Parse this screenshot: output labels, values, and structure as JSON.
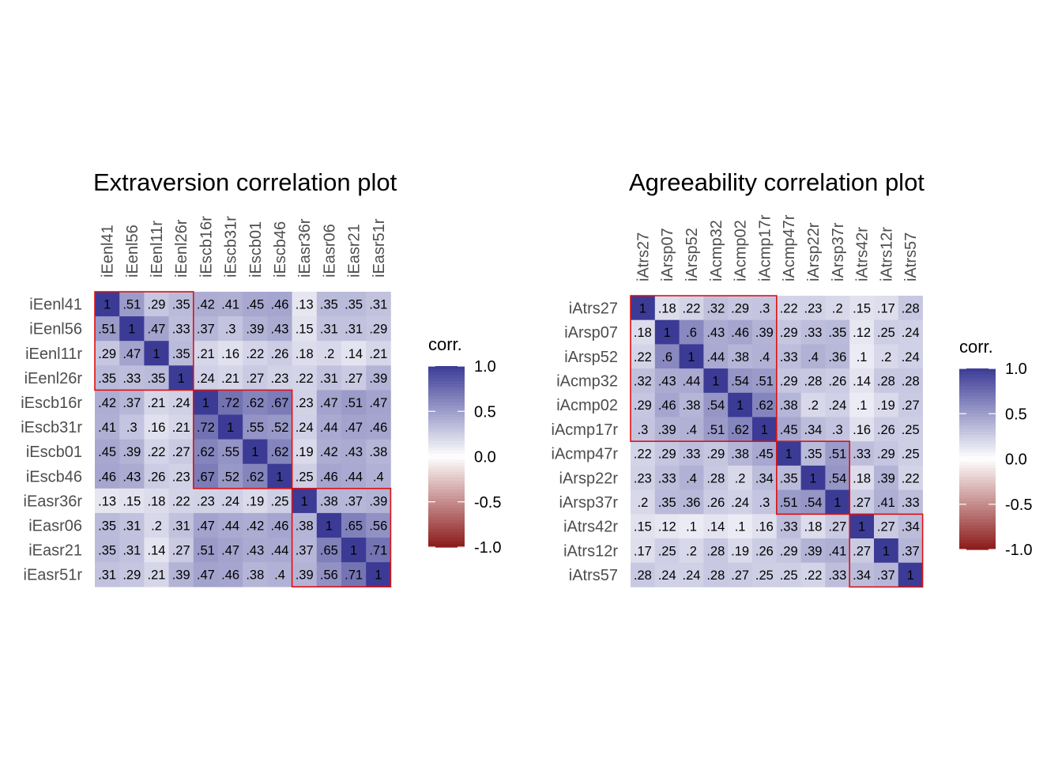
{
  "chart_data": [
    {
      "type": "heatmap",
      "title": "Extraversion correlation plot",
      "variables": [
        "iEenl41",
        "iEenl56",
        "iEenl11r",
        "iEenl26r",
        "iEscb16r",
        "iEscb31r",
        "iEscb01",
        "iEscb46",
        "iEasr36r",
        "iEasr06",
        "iEasr21",
        "iEasr51r"
      ],
      "matrix": [
        [
          1,
          0.51,
          0.29,
          0.35,
          0.42,
          0.41,
          0.45,
          0.46,
          0.13,
          0.35,
          0.35,
          0.31
        ],
        [
          0.51,
          1,
          0.47,
          0.33,
          0.37,
          0.3,
          0.39,
          0.43,
          0.15,
          0.31,
          0.31,
          0.29
        ],
        [
          0.29,
          0.47,
          1,
          0.35,
          0.21,
          0.16,
          0.22,
          0.26,
          0.18,
          0.2,
          0.14,
          0.21
        ],
        [
          0.35,
          0.33,
          0.35,
          1,
          0.24,
          0.21,
          0.27,
          0.23,
          0.22,
          0.31,
          0.27,
          0.39
        ],
        [
          0.42,
          0.37,
          0.21,
          0.24,
          1,
          0.72,
          0.62,
          0.67,
          0.23,
          0.47,
          0.51,
          0.47
        ],
        [
          0.41,
          0.3,
          0.16,
          0.21,
          0.72,
          1,
          0.55,
          0.52,
          0.24,
          0.44,
          0.47,
          0.46
        ],
        [
          0.45,
          0.39,
          0.22,
          0.27,
          0.62,
          0.55,
          1,
          0.62,
          0.19,
          0.42,
          0.43,
          0.38
        ],
        [
          0.46,
          0.43,
          0.26,
          0.23,
          0.67,
          0.52,
          0.62,
          1,
          0.25,
          0.46,
          0.44,
          0.4
        ],
        [
          0.13,
          0.15,
          0.18,
          0.22,
          0.23,
          0.24,
          0.19,
          0.25,
          1,
          0.38,
          0.37,
          0.39
        ],
        [
          0.35,
          0.31,
          0.2,
          0.31,
          0.47,
          0.44,
          0.42,
          0.46,
          0.38,
          1,
          0.65,
          0.56
        ],
        [
          0.35,
          0.31,
          0.14,
          0.27,
          0.51,
          0.47,
          0.43,
          0.44,
          0.37,
          0.65,
          1,
          0.71
        ],
        [
          0.31,
          0.29,
          0.21,
          0.39,
          0.47,
          0.46,
          0.38,
          0.4,
          0.39,
          0.56,
          0.71,
          1
        ]
      ],
      "labels": [
        [
          "1",
          ".51",
          ".29",
          ".35",
          ".42",
          ".41",
          ".45",
          ".46",
          ".13",
          ".35",
          ".35",
          ".31"
        ],
        [
          ".51",
          "1",
          ".47",
          ".33",
          ".37",
          ".3",
          ".39",
          ".43",
          ".15",
          ".31",
          ".31",
          ".29"
        ],
        [
          ".29",
          ".47",
          "1",
          ".35",
          ".21",
          ".16",
          ".22",
          ".26",
          ".18",
          ".2",
          ".14",
          ".21"
        ],
        [
          ".35",
          ".33",
          ".35",
          "1",
          ".24",
          ".21",
          ".27",
          ".23",
          ".22",
          ".31",
          ".27",
          ".39"
        ],
        [
          ".42",
          ".37",
          ".21",
          ".24",
          "1",
          ".72",
          ".62",
          ".67",
          ".23",
          ".47",
          ".51",
          ".47"
        ],
        [
          ".41",
          ".3",
          ".16",
          ".21",
          ".72",
          "1",
          ".55",
          ".52",
          ".24",
          ".44",
          ".47",
          ".46"
        ],
        [
          ".45",
          ".39",
          ".22",
          ".27",
          ".62",
          ".55",
          "1",
          ".62",
          ".19",
          ".42",
          ".43",
          ".38"
        ],
        [
          ".46",
          ".43",
          ".26",
          ".23",
          ".67",
          ".52",
          ".62",
          "1",
          ".25",
          ".46",
          ".44",
          ".4"
        ],
        [
          ".13",
          ".15",
          ".18",
          ".22",
          ".23",
          ".24",
          ".19",
          ".25",
          "1",
          ".38",
          ".37",
          ".39"
        ],
        [
          ".35",
          ".31",
          ".2",
          ".31",
          ".47",
          ".44",
          ".42",
          ".46",
          ".38",
          "1",
          ".65",
          ".56"
        ],
        [
          ".35",
          ".31",
          ".14",
          ".27",
          ".51",
          ".47",
          ".43",
          ".44",
          ".37",
          ".65",
          "1",
          ".71"
        ],
        [
          ".31",
          ".29",
          ".21",
          ".39",
          ".47",
          ".46",
          ".38",
          ".4",
          ".39",
          ".56",
          ".71",
          "1"
        ]
      ],
      "groups": [
        [
          0,
          3
        ],
        [
          4,
          7
        ],
        [
          8,
          11
        ]
      ],
      "legend": {
        "title": "corr.",
        "ticks": [
          "1.0",
          "0.5",
          "0.0",
          "-0.5",
          "-1.0"
        ],
        "range": [
          -1,
          1
        ]
      },
      "colors": {
        "low": "#8b1a1a",
        "mid": "#ffffff",
        "high": "#3b3b96",
        "group_box": "#e01010"
      }
    },
    {
      "type": "heatmap",
      "title": "Agreeability correlation plot",
      "variables": [
        "iAtrs27",
        "iArsp07",
        "iArsp52",
        "iAcmp32",
        "iAcmp02",
        "iAcmp17r",
        "iAcmp47r",
        "iArsp22r",
        "iArsp37r",
        "iAtrs42r",
        "iAtrs12r",
        "iAtrs57"
      ],
      "matrix": [
        [
          1,
          0.18,
          0.22,
          0.32,
          0.29,
          0.3,
          0.22,
          0.23,
          0.2,
          0.15,
          0.17,
          0.28
        ],
        [
          0.18,
          1,
          0.6,
          0.43,
          0.46,
          0.39,
          0.29,
          0.33,
          0.35,
          0.12,
          0.25,
          0.24
        ],
        [
          0.22,
          0.6,
          1,
          0.44,
          0.38,
          0.4,
          0.33,
          0.4,
          0.36,
          0.1,
          0.2,
          0.24
        ],
        [
          0.32,
          0.43,
          0.44,
          1,
          0.54,
          0.51,
          0.29,
          0.28,
          0.26,
          0.14,
          0.28,
          0.28
        ],
        [
          0.29,
          0.46,
          0.38,
          0.54,
          1,
          0.62,
          0.38,
          0.2,
          0.24,
          0.1,
          0.19,
          0.27
        ],
        [
          0.3,
          0.39,
          0.4,
          0.51,
          0.62,
          1,
          0.45,
          0.34,
          0.3,
          0.16,
          0.26,
          0.25
        ],
        [
          0.22,
          0.29,
          0.33,
          0.29,
          0.38,
          0.45,
          1,
          0.35,
          0.51,
          0.33,
          0.29,
          0.25
        ],
        [
          0.23,
          0.33,
          0.4,
          0.28,
          0.2,
          0.34,
          0.35,
          1,
          0.54,
          0.18,
          0.39,
          0.22
        ],
        [
          0.2,
          0.35,
          0.36,
          0.26,
          0.24,
          0.3,
          0.51,
          0.54,
          1,
          0.27,
          0.41,
          0.33
        ],
        [
          0.15,
          0.12,
          0.1,
          0.14,
          0.1,
          0.16,
          0.33,
          0.18,
          0.27,
          1,
          0.27,
          0.34
        ],
        [
          0.17,
          0.25,
          0.2,
          0.28,
          0.19,
          0.26,
          0.29,
          0.39,
          0.41,
          0.27,
          1,
          0.37
        ],
        [
          0.28,
          0.24,
          0.24,
          0.28,
          0.27,
          0.25,
          0.25,
          0.22,
          0.33,
          0.34,
          0.37,
          1
        ]
      ],
      "labels": [
        [
          "1",
          ".18",
          ".22",
          ".32",
          ".29",
          ".3",
          ".22",
          ".23",
          ".2",
          ".15",
          ".17",
          ".28"
        ],
        [
          ".18",
          "1",
          ".6",
          ".43",
          ".46",
          ".39",
          ".29",
          ".33",
          ".35",
          ".12",
          ".25",
          ".24"
        ],
        [
          ".22",
          ".6",
          "1",
          ".44",
          ".38",
          ".4",
          ".33",
          ".4",
          ".36",
          ".1",
          ".2",
          ".24"
        ],
        [
          ".32",
          ".43",
          ".44",
          "1",
          ".54",
          ".51",
          ".29",
          ".28",
          ".26",
          ".14",
          ".28",
          ".28"
        ],
        [
          ".29",
          ".46",
          ".38",
          ".54",
          "1",
          ".62",
          ".38",
          ".2",
          ".24",
          ".1",
          ".19",
          ".27"
        ],
        [
          ".3",
          ".39",
          ".4",
          ".51",
          ".62",
          "1",
          ".45",
          ".34",
          ".3",
          ".16",
          ".26",
          ".25"
        ],
        [
          ".22",
          ".29",
          ".33",
          ".29",
          ".38",
          ".45",
          "1",
          ".35",
          ".51",
          ".33",
          ".29",
          ".25"
        ],
        [
          ".23",
          ".33",
          ".4",
          ".28",
          ".2",
          ".34",
          ".35",
          "1",
          ".54",
          ".18",
          ".39",
          ".22"
        ],
        [
          ".2",
          ".35",
          ".36",
          ".26",
          ".24",
          ".3",
          ".51",
          ".54",
          "1",
          ".27",
          ".41",
          ".33"
        ],
        [
          ".15",
          ".12",
          ".1",
          ".14",
          ".1",
          ".16",
          ".33",
          ".18",
          ".27",
          "1",
          ".27",
          ".34"
        ],
        [
          ".17",
          ".25",
          ".2",
          ".28",
          ".19",
          ".26",
          ".29",
          ".39",
          ".41",
          ".27",
          "1",
          ".37"
        ],
        [
          ".28",
          ".24",
          ".24",
          ".28",
          ".27",
          ".25",
          ".25",
          ".22",
          ".33",
          ".34",
          ".37",
          "1"
        ]
      ],
      "groups": [
        [
          0,
          5
        ],
        [
          6,
          8
        ],
        [
          9,
          11
        ]
      ],
      "legend": {
        "title": "corr.",
        "ticks": [
          "1.0",
          "0.5",
          "0.0",
          "-0.5",
          "-1.0"
        ],
        "range": [
          -1,
          1
        ]
      },
      "colors": {
        "low": "#8b1a1a",
        "mid": "#ffffff",
        "high": "#3b3b96",
        "group_box": "#e01010"
      }
    }
  ]
}
